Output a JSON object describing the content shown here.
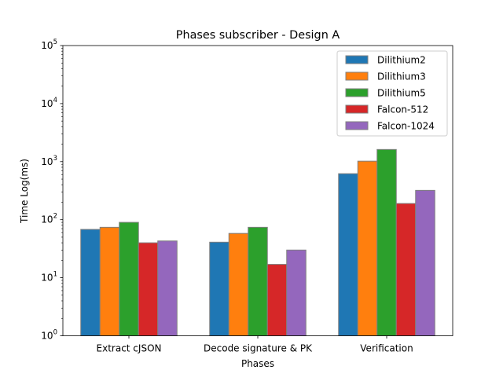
{
  "chart_data": {
    "type": "bar",
    "title": "Phases subscriber - Design A",
    "xlabel": "Phases",
    "ylabel": "Time Log(ms)",
    "y_scale": "log",
    "ylim": [
      1,
      100000
    ],
    "y_ticks": [
      {
        "base": "10",
        "exp": "0"
      },
      {
        "base": "10",
        "exp": "1"
      },
      {
        "base": "10",
        "exp": "2"
      },
      {
        "base": "10",
        "exp": "3"
      },
      {
        "base": "10",
        "exp": "4"
      },
      {
        "base": "10",
        "exp": "5"
      }
    ],
    "categories": [
      "Extract cJSON",
      "Decode signature & PK",
      "Verification"
    ],
    "series": [
      {
        "name": "Dilithium2",
        "color": "#1f77b4",
        "values": [
          68,
          41,
          620
        ]
      },
      {
        "name": "Dilithium3",
        "color": "#ff7f0e",
        "values": [
          74,
          58,
          1020
        ]
      },
      {
        "name": "Dilithium5",
        "color": "#2ca02c",
        "values": [
          90,
          74,
          1620
        ]
      },
      {
        "name": "Falcon-512",
        "color": "#d62728",
        "values": [
          40,
          17,
          190
        ]
      },
      {
        "name": "Falcon-1024",
        "color": "#9467bd",
        "values": [
          43,
          30,
          320
        ]
      }
    ],
    "grid": false,
    "legend_position": "top-right",
    "bar_edge_color": "#808080"
  }
}
